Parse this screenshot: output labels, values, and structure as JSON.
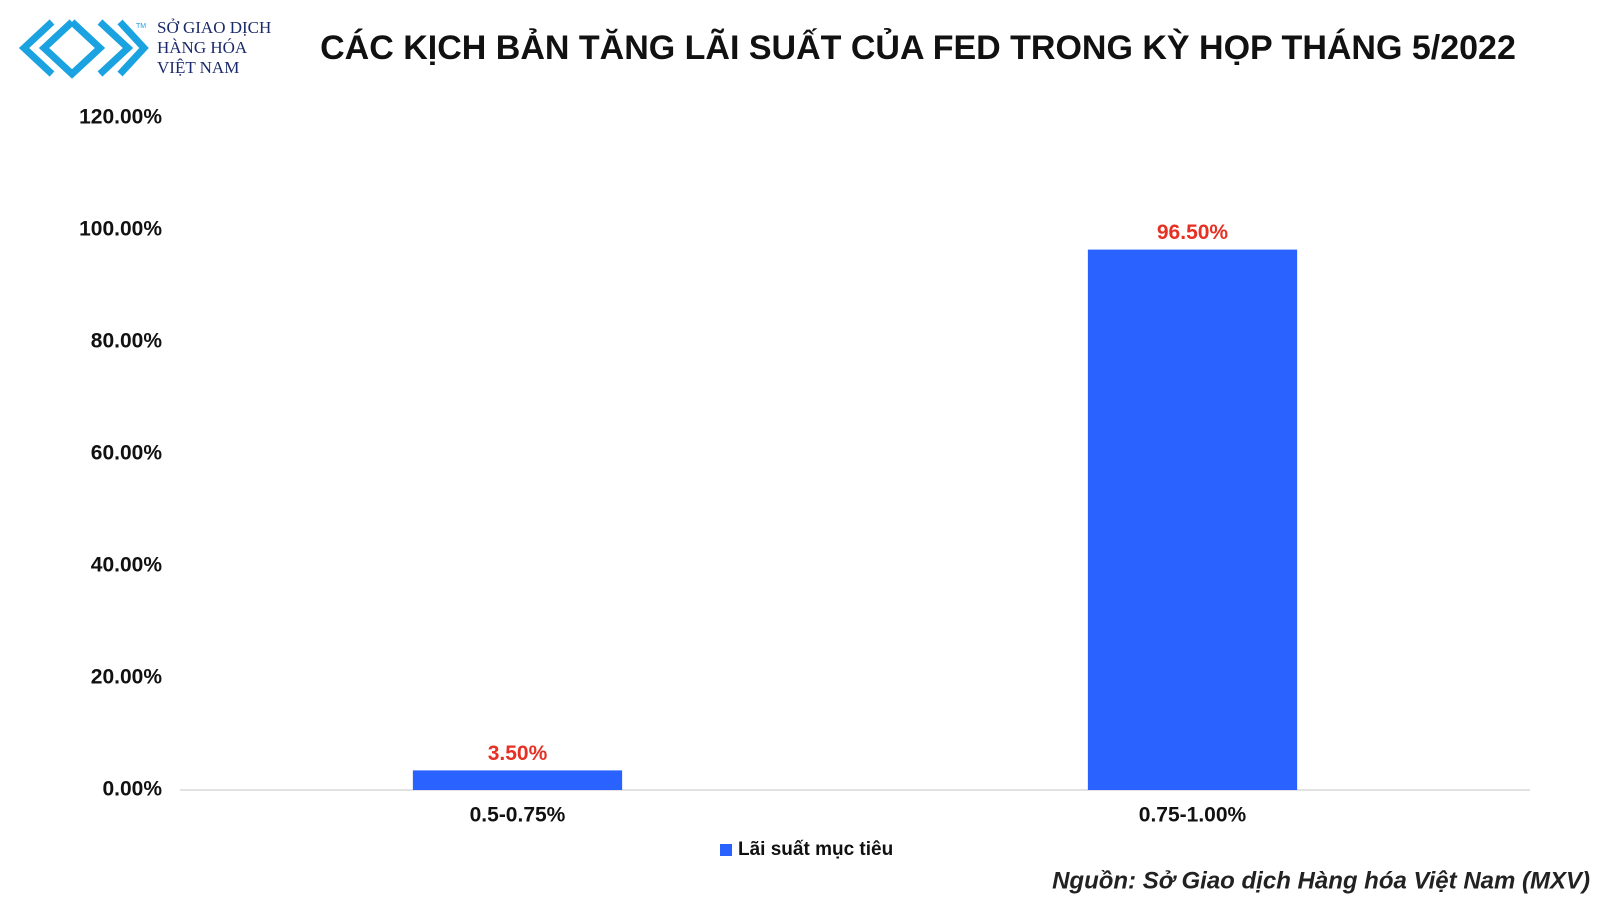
{
  "chart_data": {
    "type": "bar",
    "title": "CÁC KỊCH BẢN TĂNG LÃI SUẤT CỦA FED TRONG KỲ HỌP THÁNG 5/2022",
    "logo": {
      "lines": [
        "SỞ GIAO DỊCH",
        "HÀNG HÓA",
        "VIỆT NAM"
      ],
      "mark": "TM"
    },
    "categories": [
      "0.5-0.75%",
      "0.75-1.00%"
    ],
    "series": [
      {
        "name": "Lãi suất mục tiêu",
        "color": "#2962ff",
        "values": [
          3.5,
          96.5
        ],
        "value_labels": [
          "3.50%",
          "96.50%"
        ]
      }
    ],
    "value_label_color": "#e53023",
    "ylim": [
      0,
      120
    ],
    "yticks": [
      {
        "value": 0,
        "label": "0.00%"
      },
      {
        "value": 20,
        "label": "20.00%"
      },
      {
        "value": 40,
        "label": "40.00%"
      },
      {
        "value": 60,
        "label": "60.00%"
      },
      {
        "value": 80,
        "label": "80.00%"
      },
      {
        "value": 100,
        "label": "100.00%"
      },
      {
        "value": 120,
        "label": "120.00%"
      }
    ],
    "grid": false,
    "legend": "bottom",
    "source": "Nguồn: Sở Giao dịch Hàng hóa Việt Nam (MXV)"
  }
}
